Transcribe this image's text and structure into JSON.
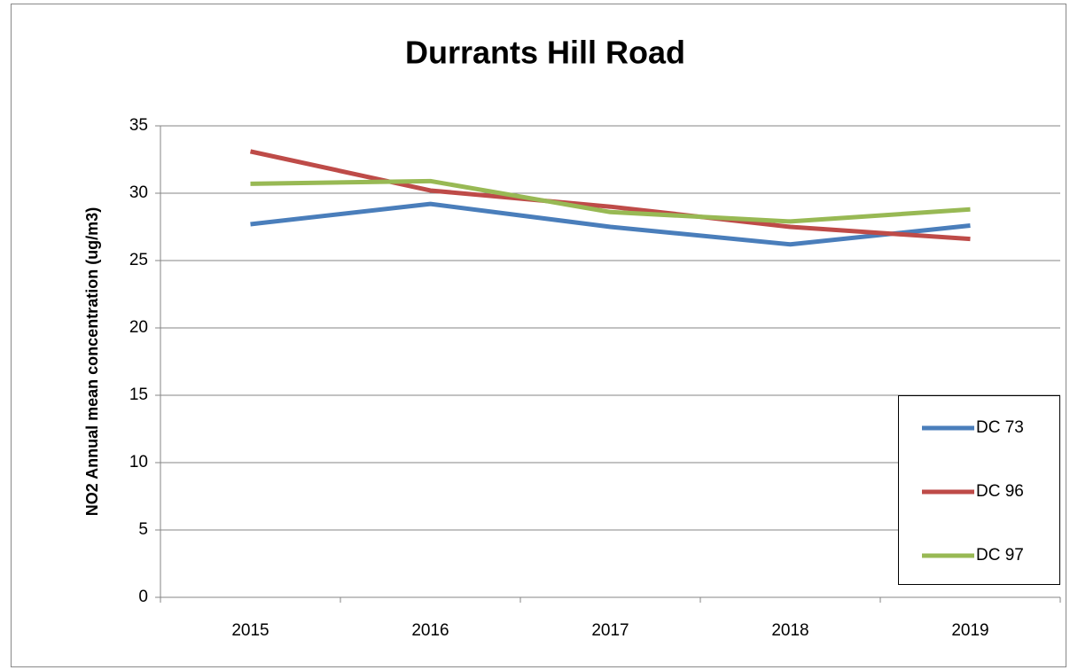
{
  "chart_data": {
    "type": "line",
    "title": "Durrants Hill Road",
    "ylabel": "NO2 Annual mean concentration (ug/m3)",
    "categories": [
      "2015",
      "2016",
      "2017",
      "2018",
      "2019"
    ],
    "series": [
      {
        "name": "DC 73",
        "color": "#4a7ebb",
        "values": [
          27.7,
          29.2,
          27.5,
          26.2,
          27.6
        ]
      },
      {
        "name": "DC 96",
        "color": "#be4b48",
        "values": [
          33.1,
          30.2,
          29.0,
          27.5,
          26.6
        ]
      },
      {
        "name": "DC 97",
        "color": "#98b954",
        "values": [
          30.7,
          30.9,
          28.6,
          27.9,
          28.8
        ]
      }
    ],
    "ylim": [
      0,
      35
    ],
    "yticks": [
      0,
      5,
      10,
      15,
      20,
      25,
      30,
      35
    ],
    "grid": true,
    "legend": "right"
  }
}
